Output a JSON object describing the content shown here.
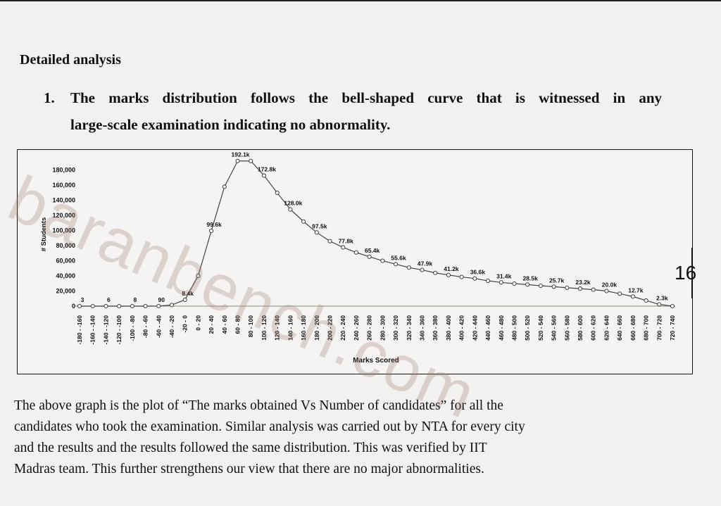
{
  "document": {
    "heading": "Detailed analysis",
    "point_number": "1.",
    "point_line1": "The marks distribution follows the bell-shaped curve that is witnessed in any",
    "point_line2": "large-scale examination indicating no abnormality.",
    "page_number": "16",
    "paragraph_lines": [
      "The above graph is the plot of “The marks obtained Vs Number of candidates” for all the",
      "candidates who took the examination. Similar analysis was carried out by NTA for every city",
      "and the results and the results followed the same distribution. This was verified by IIT",
      "Madras team. This further strengthens our view that there are no major abnormalities."
    ],
    "watermark": "baranbench.com",
    "colors": {
      "ink": "#111111",
      "watermark": "#96786e",
      "grid_green": "#9aa38a"
    }
  },
  "chart_data": {
    "type": "line",
    "title": "",
    "xlabel": "Marks Scored",
    "ylabel": "# Students",
    "ylim": [
      0,
      190000
    ],
    "ytick_labels": [
      "0",
      "20,000",
      "40,000",
      "60,000",
      "80,000",
      "100,000",
      "120,000",
      "140,000",
      "160,000",
      "180,000"
    ],
    "yticks": [
      0,
      20000,
      40000,
      60000,
      80000,
      100000,
      120000,
      140000,
      160000,
      180000
    ],
    "grid": false,
    "categories": [
      "-180 - -160",
      "-160 - -140",
      "-140 - -120",
      "-120 - -100",
      "-100 - -80",
      "-80 - -60",
      "-60 - -40",
      "-40 - -20",
      "-20 - 0",
      "0 - 20",
      "20 - 40",
      "40 - 60",
      "60 - 80",
      "80 - 100",
      "100 - 120",
      "120 - 140",
      "140 - 160",
      "160 - 180",
      "180 - 200",
      "200 - 220",
      "220 - 240",
      "240 - 260",
      "260 - 280",
      "280 - 300",
      "300 - 320",
      "320 - 340",
      "340 - 360",
      "360 - 380",
      "380 - 400",
      "400 - 420",
      "420 - 440",
      "440 - 460",
      "460 - 480",
      "480 - 500",
      "500 - 520",
      "520 - 540",
      "540 - 560",
      "560 - 580",
      "580 - 600",
      "600 - 620",
      "620 - 640",
      "640 - 660",
      "660 - 680",
      "680 - 700",
      "700 - 720",
      "720 - 740"
    ],
    "values": [
      3,
      0,
      6,
      0,
      8,
      0,
      90,
      1500,
      8400,
      40000,
      99600,
      158000,
      192100,
      192100,
      172800,
      150000,
      128000,
      112000,
      97500,
      86000,
      77800,
      71000,
      65400,
      60000,
      55600,
      51000,
      47900,
      44000,
      41200,
      38600,
      36600,
      33500,
      31400,
      29800,
      28500,
      27000,
      25700,
      24300,
      23200,
      21800,
      20000,
      16500,
      12700,
      7500,
      2300,
      0
    ],
    "data_labels": [
      {
        "i": 0,
        "text": "3"
      },
      {
        "i": 2,
        "text": "6"
      },
      {
        "i": 4,
        "text": "8"
      },
      {
        "i": 6,
        "text": "90"
      },
      {
        "i": 8,
        "text": "8.4k"
      },
      {
        "i": 10,
        "text": "99.6k"
      },
      {
        "i": 12,
        "text": "192.1k"
      },
      {
        "i": 14,
        "text": "172.8k"
      },
      {
        "i": 16,
        "text": "128.0k"
      },
      {
        "i": 18,
        "text": "97.5k"
      },
      {
        "i": 20,
        "text": "77.8k"
      },
      {
        "i": 22,
        "text": "65.4k"
      },
      {
        "i": 24,
        "text": "55.6k"
      },
      {
        "i": 26,
        "text": "47.9k"
      },
      {
        "i": 28,
        "text": "41.2k"
      },
      {
        "i": 30,
        "text": "36.6k"
      },
      {
        "i": 32,
        "text": "31.4k"
      },
      {
        "i": 34,
        "text": "28.5k"
      },
      {
        "i": 36,
        "text": "25.7k"
      },
      {
        "i": 38,
        "text": "23.2k"
      },
      {
        "i": 40,
        "text": "20.0k"
      },
      {
        "i": 42,
        "text": "12.7k"
      },
      {
        "i": 44,
        "text": "2.3k"
      }
    ]
  }
}
